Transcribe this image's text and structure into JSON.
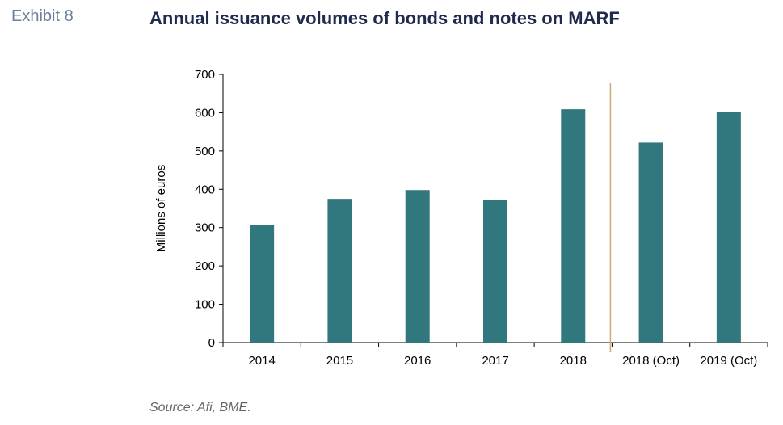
{
  "exhibit_label": "Exhibit 8",
  "chart_data": {
    "type": "bar",
    "title": "Annual issuance volumes of bonds and notes on MARF",
    "ylabel": "Millions of euros",
    "xlabel": "",
    "ylim": [
      0,
      700
    ],
    "yticks": [
      "0",
      "100",
      "200",
      "300",
      "400",
      "500",
      "600",
      "700"
    ],
    "categories": [
      "2014",
      "2015",
      "2016",
      "2017",
      "2018",
      "2018 (Oct)",
      "2019 (Oct)"
    ],
    "values": [
      307,
      375,
      398,
      372,
      609,
      522,
      603
    ],
    "divider_after_index": 4,
    "grid": false,
    "legend": "none"
  },
  "colors": {
    "bar": "#31777e",
    "divider": "#c9ab6e",
    "axis": "#000000",
    "title": "#1f2a4d",
    "exhibit": "#6b7f99",
    "source": "#666666"
  },
  "source": "Source: Afi, BME."
}
